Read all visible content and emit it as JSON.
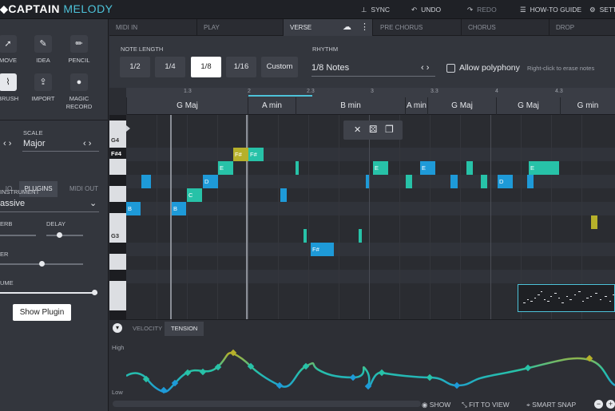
{
  "app": {
    "brand_left": "CAPTAIN",
    "brand_right": "MELODY"
  },
  "topbar": {
    "sync": "SYNC",
    "undo": "UNDO",
    "redo": "REDO",
    "howto": "HOW-TO GUIDE",
    "settings": "SETTI"
  },
  "tools": [
    {
      "label": "MOVE",
      "icon": "move-icon"
    },
    {
      "label": "IDEA",
      "icon": "idea-icon"
    },
    {
      "label": "PENCIL",
      "icon": "pencil-icon"
    },
    {
      "label": "BRUSH",
      "icon": "brush-icon"
    },
    {
      "label": "IMPORT",
      "icon": "import-icon"
    },
    {
      "label": "MAGIC RECORD",
      "icon": "record-icon"
    }
  ],
  "scale": {
    "label": "SCALE",
    "value": "Major"
  },
  "left_tabs": [
    "IO",
    "PLUGINS",
    "MIDI OUT"
  ],
  "instrument": {
    "label": "INSTRUMENT",
    "value": "assive"
  },
  "fx": {
    "reverb": "ERB",
    "delay": "DELAY",
    "filter": "ER",
    "volume": "UME",
    "delay_level": 0.5,
    "filter_level": 0.5,
    "volume_level": 1.0
  },
  "show_plugin": "Show Plugin",
  "sections": [
    "MIDI IN",
    "PLAY",
    "VERSE",
    "PRE CHORUS",
    "CHORUS",
    "DROP"
  ],
  "note_length": {
    "label": "NOTE LENGTH",
    "options": [
      "1/2",
      "1/4",
      "1/8",
      "1/16",
      "Custom"
    ],
    "selected": "1/8"
  },
  "rhythm": {
    "label": "RHYTHM",
    "value": "1/8 Notes"
  },
  "polyphony": {
    "label": "Allow polyphony",
    "hint": "Right-click to erase notes"
  },
  "ruler": [
    "1.3",
    "2",
    "2.3",
    "3",
    "3.3",
    "4",
    "4.3"
  ],
  "chords": [
    "G Maj",
    "A min",
    "B min",
    "A min",
    "G Maj",
    "G Maj",
    "G min"
  ],
  "key_labels": [
    "G4",
    "F#4",
    "G3"
  ],
  "notes": [
    "B",
    "B",
    "C",
    "D",
    "E",
    "F#",
    "F#",
    "E",
    "E",
    "D",
    "E",
    "F#"
  ],
  "bottom": {
    "tabs": [
      "VELOCITY",
      "TENSION"
    ],
    "high": "High",
    "low": "Low",
    "show": "SHOW",
    "fit": "FIT TO VIEW",
    "snap": "SMART SNAP"
  },
  "colors": {
    "blue": "#1e9ad8",
    "teal": "#27c2a8",
    "olive": "#b6b02a",
    "accent": "#4dc3d9"
  }
}
